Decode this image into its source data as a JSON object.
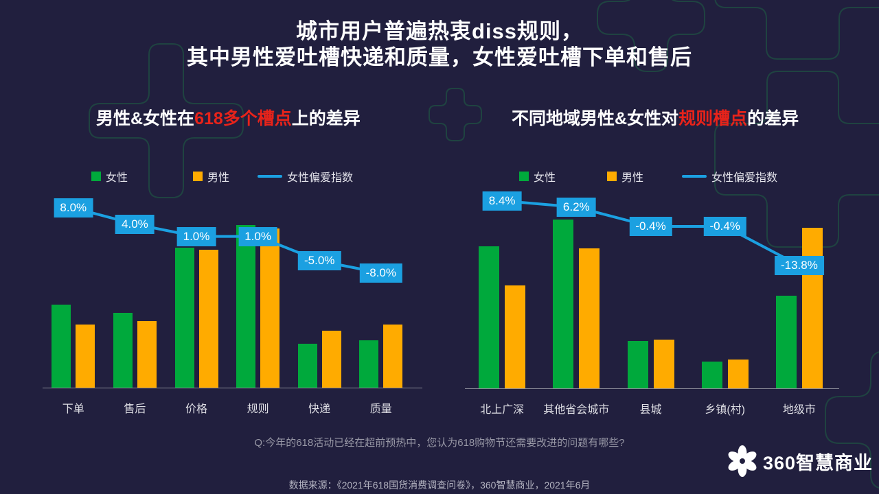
{
  "slide": {
    "title_line1": "城市用户普遍热衷diss规则，",
    "title_line2": "其中男性爱吐槽快递和质量，女性爱吐槽下单和售后",
    "question": "Q:今年的618活动已经在超前预热中，您认为618购物节还需要改进的问题有哪些?",
    "source": "数据来源：《2021年618国货消费调查问卷》，360智慧商业，2021年6月",
    "logo_text": "360智慧商业"
  },
  "colors": {
    "background": "#211f3e",
    "female_green": "#00a93c",
    "male_orange": "#ffab00",
    "line_blue": "#1ba0e1",
    "accent_red": "#e8231a",
    "decoration_teal": "#1f4a42",
    "axis_gray": "#8d8d99"
  },
  "chart_data": [
    {
      "type": "bar",
      "title_parts": {
        "pre": "男性&女性在",
        "highlight": "618多个槽点",
        "post": "上的差异"
      },
      "legend": [
        "女性",
        "男性",
        "女性偏爱指数"
      ],
      "categories": [
        "下单",
        "售后",
        "价格",
        "规则",
        "快递",
        "质量"
      ],
      "series": [
        {
          "name": "女性",
          "color": "#00a93c",
          "values": [
            51,
            46,
            86,
            100,
            27,
            29
          ]
        },
        {
          "name": "男性",
          "color": "#ffab00",
          "values": [
            39,
            41,
            85,
            98,
            35,
            39
          ]
        }
      ],
      "line_series": {
        "name": "女性偏爱指数",
        "color": "#1ba0e1",
        "values": [
          8.0,
          4.0,
          1.0,
          1.0,
          -5.0,
          -8.0
        ],
        "labels": [
          "8.0%",
          "4.0%",
          "1.0%",
          "1.0%",
          "-5.0%",
          "-8.0%"
        ]
      }
    },
    {
      "type": "bar",
      "title_parts": {
        "pre": "不同地域男性&女性对",
        "highlight": "规则槽点",
        "post": "的差异"
      },
      "legend": [
        "女性",
        "男性",
        "女性偏爱指数"
      ],
      "categories": [
        "北上广深",
        "其他省会城市",
        "县城",
        "乡镇(村)",
        "地级市"
      ],
      "series": [
        {
          "name": "女性",
          "color": "#00a93c",
          "values": [
            84,
            100,
            28,
            16,
            55
          ]
        },
        {
          "name": "男性",
          "color": "#ffab00",
          "values": [
            61,
            83,
            29,
            17,
            95
          ]
        }
      ],
      "line_series": {
        "name": "女性偏爱指数",
        "color": "#1ba0e1",
        "values": [
          8.4,
          6.2,
          -0.4,
          -0.4,
          -13.8
        ],
        "labels": [
          "8.4%",
          "6.2%",
          "-0.4%",
          "-0.4%",
          "-13.8%"
        ]
      }
    }
  ]
}
